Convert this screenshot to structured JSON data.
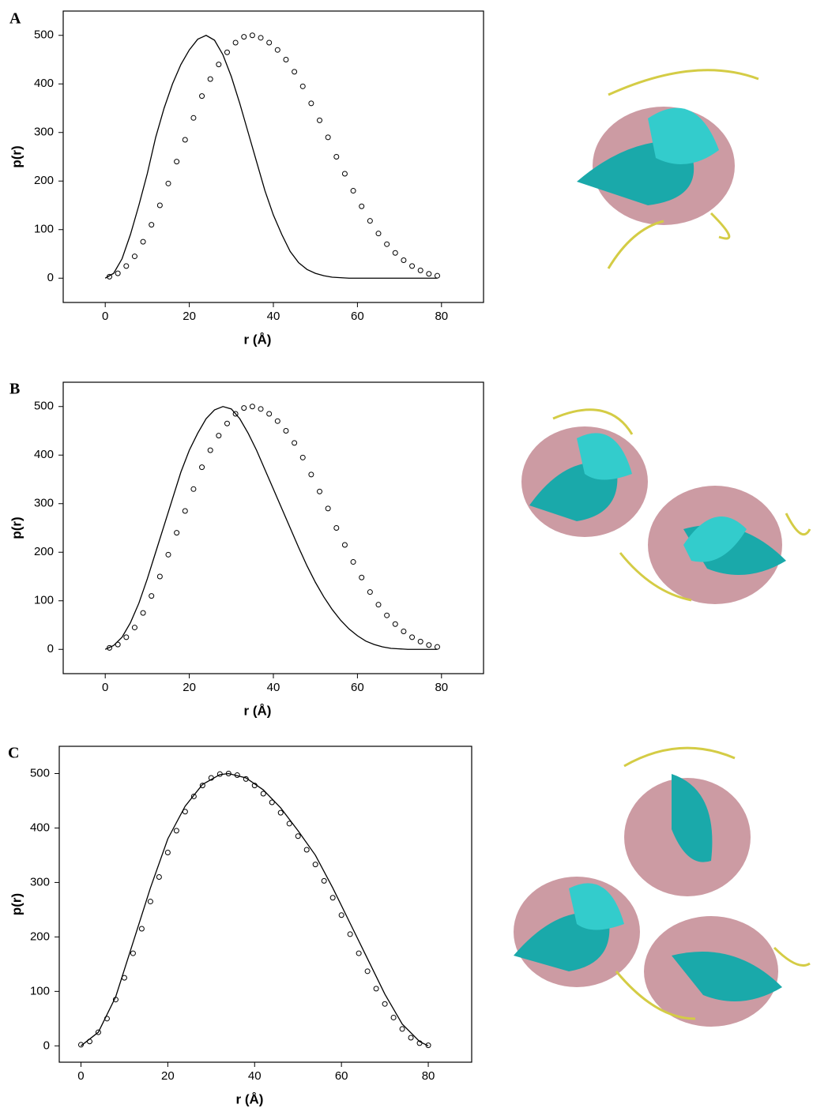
{
  "chart_data": [
    {
      "type": "line",
      "label": "A",
      "xlabel": "r (Å)",
      "ylabel": "p(r)",
      "xlim": [
        -10,
        90
      ],
      "ylim": [
        -50,
        550
      ],
      "xticks": [
        0,
        20,
        40,
        60,
        80
      ],
      "yticks": [
        0,
        100,
        200,
        300,
        400,
        500
      ],
      "series": [
        {
          "mode": "line",
          "color": "#000000",
          "x": [
            0,
            2,
            4,
            6,
            8,
            10,
            12,
            14,
            16,
            18,
            20,
            22,
            24,
            26,
            28,
            30,
            32,
            34,
            36,
            38,
            40,
            42,
            44,
            46,
            48,
            50,
            52,
            54,
            56,
            58,
            79
          ],
          "values": [
            0,
            10,
            40,
            90,
            150,
            215,
            290,
            350,
            400,
            440,
            470,
            492,
            500,
            490,
            460,
            415,
            360,
            300,
            240,
            180,
            130,
            90,
            55,
            32,
            18,
            10,
            5,
            2,
            1,
            0,
            0
          ]
        },
        {
          "mode": "markers",
          "color": "#000000",
          "x": [
            1,
            3,
            5,
            7,
            9,
            11,
            13,
            15,
            17,
            19,
            21,
            23,
            25,
            27,
            29,
            31,
            33,
            35,
            37,
            39,
            41,
            43,
            45,
            47,
            49,
            51,
            53,
            55,
            57,
            59,
            61,
            63,
            65,
            67,
            69,
            71,
            73,
            75,
            77,
            79
          ],
          "values": [
            3,
            10,
            25,
            45,
            75,
            110,
            150,
            195,
            240,
            285,
            330,
            375,
            410,
            440,
            465,
            485,
            497,
            500,
            495,
            485,
            470,
            450,
            425,
            395,
            360,
            325,
            290,
            250,
            215,
            180,
            148,
            118,
            92,
            70,
            52,
            37,
            25,
            16,
            9,
            5
          ]
        }
      ]
    },
    {
      "type": "line",
      "label": "B",
      "xlabel": "r (Å)",
      "ylabel": "p(r)",
      "xlim": [
        -10,
        90
      ],
      "ylim": [
        -50,
        550
      ],
      "xticks": [
        0,
        20,
        40,
        60,
        80
      ],
      "yticks": [
        0,
        100,
        200,
        300,
        400,
        500
      ],
      "series": [
        {
          "mode": "line",
          "color": "#000000",
          "x": [
            0,
            2,
            4,
            6,
            8,
            10,
            12,
            14,
            16,
            18,
            20,
            22,
            24,
            26,
            28,
            30,
            32,
            34,
            36,
            38,
            40,
            42,
            44,
            46,
            48,
            50,
            52,
            54,
            56,
            58,
            60,
            62,
            64,
            66,
            68,
            70,
            72,
            79
          ],
          "values": [
            0,
            8,
            25,
            55,
            95,
            145,
            200,
            255,
            310,
            365,
            410,
            445,
            475,
            493,
            500,
            495,
            475,
            445,
            410,
            370,
            330,
            290,
            250,
            210,
            172,
            138,
            108,
            82,
            60,
            42,
            28,
            17,
            10,
            5,
            2,
            1,
            0,
            0
          ]
        },
        {
          "mode": "markers",
          "color": "#000000",
          "x": [
            1,
            3,
            5,
            7,
            9,
            11,
            13,
            15,
            17,
            19,
            21,
            23,
            25,
            27,
            29,
            31,
            33,
            35,
            37,
            39,
            41,
            43,
            45,
            47,
            49,
            51,
            53,
            55,
            57,
            59,
            61,
            63,
            65,
            67,
            69,
            71,
            73,
            75,
            77,
            79
          ],
          "values": [
            3,
            10,
            25,
            45,
            75,
            110,
            150,
            195,
            240,
            285,
            330,
            375,
            410,
            440,
            465,
            485,
            497,
            500,
            495,
            485,
            470,
            450,
            425,
            395,
            360,
            325,
            290,
            250,
            215,
            180,
            148,
            118,
            92,
            70,
            52,
            37,
            25,
            16,
            9,
            5
          ]
        }
      ]
    },
    {
      "type": "line",
      "label": "C",
      "xlabel": "r (Å)",
      "ylabel": "p(r)",
      "xlim": [
        -5,
        90
      ],
      "ylim": [
        -30,
        550
      ],
      "xticks": [
        0,
        20,
        40,
        60,
        80
      ],
      "yticks": [
        0,
        100,
        200,
        300,
        400,
        500
      ],
      "series": [
        {
          "mode": "line",
          "color": "#000000",
          "x": [
            0,
            4,
            8,
            12,
            16,
            20,
            24,
            28,
            32,
            34,
            38,
            42,
            46,
            50,
            54,
            58,
            62,
            66,
            70,
            74,
            78,
            80
          ],
          "values": [
            0,
            25,
            90,
            190,
            290,
            380,
            440,
            480,
            498,
            500,
            492,
            470,
            437,
            395,
            350,
            290,
            225,
            160,
            95,
            40,
            8,
            0
          ]
        },
        {
          "mode": "markers",
          "color": "#000000",
          "x": [
            0,
            2,
            4,
            6,
            8,
            10,
            12,
            14,
            16,
            18,
            20,
            22,
            24,
            26,
            28,
            30,
            32,
            34,
            36,
            38,
            40,
            42,
            44,
            46,
            48,
            50,
            52,
            54,
            56,
            58,
            60,
            62,
            64,
            66,
            68,
            70,
            72,
            74,
            76,
            78,
            80
          ],
          "values": [
            2,
            8,
            25,
            50,
            85,
            125,
            170,
            215,
            265,
            310,
            355,
            395,
            430,
            458,
            478,
            492,
            499,
            500,
            497,
            490,
            478,
            463,
            447,
            428,
            408,
            385,
            360,
            333,
            303,
            272,
            240,
            205,
            170,
            137,
            105,
            77,
            52,
            31,
            15,
            5,
            1
          ]
        }
      ]
    }
  ]
}
